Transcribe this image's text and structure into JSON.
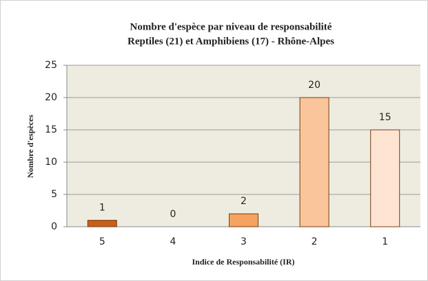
{
  "chart_data": {
    "type": "bar",
    "title": "Nombre d'espèce par niveau de responsabilité",
    "subtitle": "Reptiles  (21) et Amphibiens (17) - Rhône-Alpes",
    "x_label": "Indice de Responsabilité (IR)",
    "y_label": "Nombre d'espèces",
    "categories": [
      "5",
      "4",
      "3",
      "2",
      "1"
    ],
    "values": [
      1,
      0,
      2,
      20,
      15
    ],
    "colors": [
      "#c8601a",
      "#e07a30",
      "#f4a460",
      "#fac59a",
      "#fde5d2"
    ],
    "ylim": [
      0,
      25
    ],
    "yticks": [
      0,
      5,
      10,
      15,
      20,
      25
    ],
    "grid": true,
    "data_labels": true
  }
}
